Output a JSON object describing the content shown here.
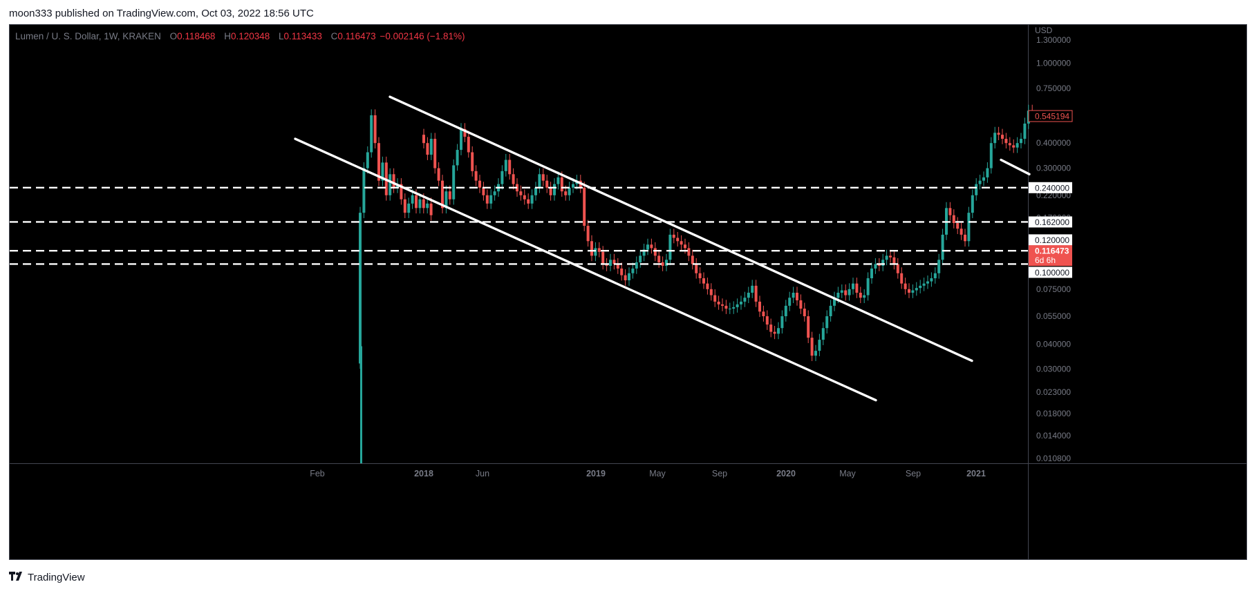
{
  "header": {
    "published_text": "moon333 published on TradingView.com, Oct 03, 2022 18:56 UTC"
  },
  "legend": {
    "symbol": "Lumen / U. S. Dollar, 1W, KRAKEN",
    "open_label": "O",
    "open": "0.118468",
    "high_label": "H",
    "high": "0.120348",
    "low_label": "L",
    "low": "0.113433",
    "close_label": "C",
    "close": "0.116473",
    "change": "−0.002146 (−1.81%)"
  },
  "footer": {
    "brand": "TradingView",
    "logo_icon": "tradingview-logo-icon"
  },
  "colors": {
    "background": "#000000",
    "up": "#26a69a",
    "down": "#ef5350",
    "drawing": "#ffffff",
    "axis_text": "#787b86"
  },
  "chart_data": {
    "type": "candlestick",
    "y_axis": {
      "unit": "USD",
      "scale": "log",
      "ticks": [
        "1.300000",
        "1.000000",
        "0.750000",
        "0.400000",
        "0.300000",
        "0.220000",
        "0.170000",
        "0.075000",
        "0.055000",
        "0.040000",
        "0.030000",
        "0.023000",
        "0.018000",
        "0.014000",
        "0.010800"
      ],
      "ylim": [
        0.0102,
        1.55
      ]
    },
    "x_axis": {
      "ticks": [
        {
          "label": "Feb",
          "bold": false
        },
        {
          "label": "2018",
          "bold": true
        },
        {
          "label": "Jun",
          "bold": false
        },
        {
          "label": "2019",
          "bold": true
        },
        {
          "label": "May",
          "bold": false
        },
        {
          "label": "Sep",
          "bold": false
        },
        {
          "label": "2020",
          "bold": true
        },
        {
          "label": "May",
          "bold": false
        },
        {
          "label": "Sep",
          "bold": false
        },
        {
          "label": "2021",
          "bold": true
        }
      ]
    },
    "price_labels": [
      {
        "value": "0.545194",
        "style": "last-outline"
      },
      {
        "value": "0.240000",
        "style": "level"
      },
      {
        "value": "0.162000",
        "style": "level"
      },
      {
        "value": "0.120000",
        "style": "level"
      },
      {
        "value": "0.116473",
        "style": "current",
        "countdown": "6d 6h"
      },
      {
        "value": "0.100000",
        "style": "level"
      }
    ],
    "horizontal_levels": [
      0.24,
      0.162,
      0.116473,
      0.1
    ],
    "trendlines": [
      {
        "from": [
          "2017-08",
          0.42
        ],
        "to": [
          "2020-09",
          0.021
        ]
      },
      {
        "from": [
          "2017-10",
          0.68
        ],
        "to": [
          "2020-12",
          0.033
        ]
      },
      {
        "from": [
          "2021-03",
          0.33
        ],
        "to": [
          "2021-05",
          0.28
        ]
      }
    ],
    "segments": [
      {
        "start": 0.032,
        "points": [
          0.18,
          0.3,
          0.36,
          0.55,
          0.4,
          0.26,
          0.32,
          0.22,
          0.28,
          0.24,
          0.25,
          0.21,
          0.18,
          0.2,
          0.22,
          0.19,
          0.21,
          0.19,
          0.2,
          0.175
        ]
      },
      {
        "start": 0.44,
        "points": [
          0.4,
          0.35,
          0.42,
          0.3,
          0.26,
          0.19,
          0.23,
          0.21,
          0.31,
          0.37,
          0.47,
          0.43,
          0.36,
          0.29,
          0.26,
          0.24,
          0.22,
          0.2,
          0.22,
          0.23,
          0.25,
          0.29,
          0.33,
          0.28,
          0.25,
          0.23,
          0.22,
          0.21,
          0.2,
          0.22,
          0.24,
          0.28,
          0.26,
          0.24,
          0.22,
          0.25,
          0.27,
          0.23,
          0.22,
          0.24,
          0.25,
          0.26,
          0.24,
          0.155,
          0.13,
          0.11,
          0.12,
          0.115,
          0.1,
          0.098,
          0.105,
          0.1,
          0.095,
          0.088,
          0.083,
          0.09,
          0.095,
          0.102,
          0.11,
          0.118,
          0.125,
          0.12,
          0.11,
          0.102,
          0.098,
          0.105,
          0.14,
          0.135,
          0.13,
          0.125,
          0.12,
          0.11,
          0.1,
          0.09,
          0.085,
          0.08,
          0.075,
          0.07,
          0.065,
          0.063,
          0.062,
          0.06,
          0.06,
          0.061,
          0.063,
          0.065,
          0.068,
          0.072,
          0.078,
          0.065,
          0.058,
          0.055,
          0.05,
          0.046,
          0.045,
          0.048,
          0.055,
          0.062,
          0.068,
          0.072,
          0.066,
          0.06,
          0.055,
          0.043,
          0.035,
          0.037,
          0.042,
          0.048,
          0.055,
          0.062,
          0.068,
          0.072,
          0.074,
          0.07,
          0.075,
          0.08,
          0.072,
          0.068,
          0.07,
          0.085,
          0.095,
          0.1,
          0.098,
          0.105,
          0.11,
          0.108,
          0.1,
          0.09,
          0.08,
          0.075,
          0.072,
          0.074,
          0.076,
          0.078,
          0.08,
          0.082,
          0.085,
          0.09,
          0.105,
          0.14,
          0.19,
          0.175,
          0.16,
          0.15,
          0.14,
          0.13,
          0.18,
          0.22,
          0.25,
          0.26,
          0.27,
          0.3,
          0.4,
          0.45,
          0.44,
          0.42,
          0.4,
          0.39,
          0.38,
          0.4,
          0.42,
          0.5,
          0.58,
          0.545
        ]
      }
    ]
  }
}
